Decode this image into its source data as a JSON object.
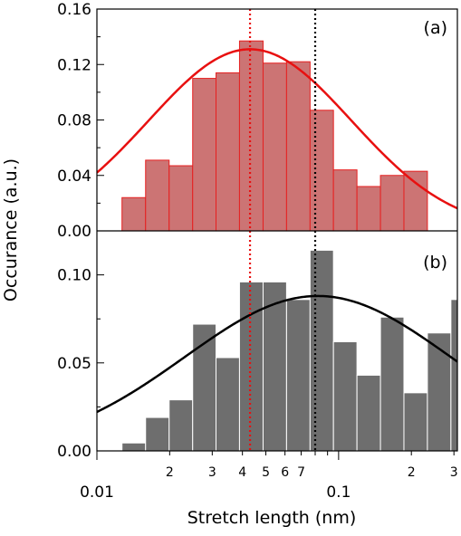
{
  "chart_data": {
    "type": "bar",
    "x_scale": "log",
    "xlim": [
      0.01,
      0.31
    ],
    "xlabel": "Stretch length (nm)",
    "ylabel": "Occurance (a.u.)",
    "x_major_ticks": [
      {
        "value": 0.01,
        "label": "0.01"
      },
      {
        "value": 0.1,
        "label": "0.1"
      }
    ],
    "x_minor_ticks": [
      {
        "value": 0.02,
        "label": "2"
      },
      {
        "value": 0.03,
        "label": "3"
      },
      {
        "value": 0.04,
        "label": "4"
      },
      {
        "value": 0.05,
        "label": "5"
      },
      {
        "value": 0.06,
        "label": "6"
      },
      {
        "value": 0.07,
        "label": "7"
      },
      {
        "value": 0.08,
        "label": ""
      },
      {
        "value": 0.09,
        "label": ""
      },
      {
        "value": 0.2,
        "label": "2"
      },
      {
        "value": 0.3,
        "label": "3"
      }
    ],
    "panels": [
      {
        "tag": "(a)",
        "ylim": [
          0,
          0.16
        ],
        "y_ticks": [
          {
            "value": 0.0,
            "label": "0.00"
          },
          {
            "value": 0.04,
            "label": "0.04"
          },
          {
            "value": 0.08,
            "label": "0.08"
          },
          {
            "value": 0.12,
            "label": "0.12"
          },
          {
            "value": 0.16,
            "label": "0.16"
          }
        ],
        "bar_fill": "#cc7474",
        "bar_stroke": "#e62020",
        "bin_edges": [
          0.0127,
          0.0159,
          0.0199,
          0.0249,
          0.0311,
          0.0389,
          0.0487,
          0.0609,
          0.0762,
          0.0952,
          0.1191,
          0.149,
          0.1863,
          0.233,
          0.2915
        ],
        "values": [
          0.024,
          0.051,
          0.047,
          0.11,
          0.114,
          0.137,
          0.121,
          0.122,
          0.087,
          0.044,
          0.032,
          0.04,
          0.043,
          0.0
        ],
        "fit": {
          "color": "#e81010",
          "amplitude": 0.131,
          "center": 0.043,
          "width_log10": 0.42
        },
        "vlines": [
          {
            "x": 0.043,
            "color": "#e81010"
          },
          {
            "x": 0.08,
            "color": "#000000"
          }
        ]
      },
      {
        "tag": "(b)",
        "ylim": [
          0,
          0.125
        ],
        "y_ticks": [
          {
            "value": 0.0,
            "label": "0.00"
          },
          {
            "value": 0.05,
            "label": "0.05"
          },
          {
            "value": 0.1,
            "label": "0.10"
          }
        ],
        "bar_fill": "#6e6e6e",
        "bar_stroke": "#ffffff",
        "bin_edges": [
          0.0127,
          0.0159,
          0.0199,
          0.0249,
          0.0311,
          0.0389,
          0.0487,
          0.0609,
          0.0762,
          0.0952,
          0.1191,
          0.149,
          0.1863,
          0.233,
          0.2915,
          0.33
        ],
        "values": [
          0.0045,
          0.019,
          0.029,
          0.072,
          0.053,
          0.096,
          0.096,
          0.086,
          0.114,
          0.062,
          0.043,
          0.076,
          0.033,
          0.067,
          0.086
        ],
        "fit": {
          "color": "#000000",
          "amplitude": 0.088,
          "center": 0.082,
          "width_log10": 0.55
        },
        "vlines": [
          {
            "x": 0.043,
            "color": "#e81010"
          },
          {
            "x": 0.08,
            "color": "#000000"
          }
        ]
      }
    ]
  }
}
